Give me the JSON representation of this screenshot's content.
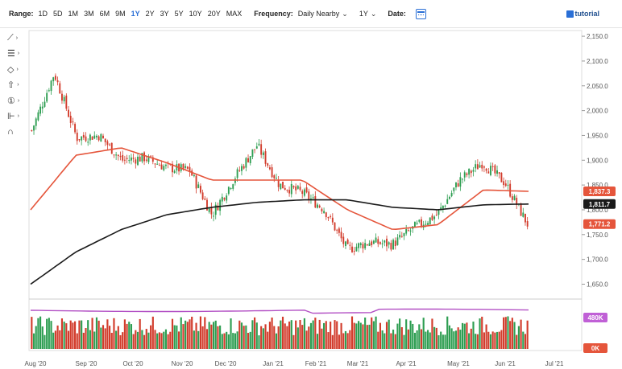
{
  "toolbar": {
    "range_label": "Range:",
    "ranges": [
      "1D",
      "5D",
      "1M",
      "3M",
      "6M",
      "9M",
      "1Y",
      "2Y",
      "3Y",
      "5Y",
      "10Y",
      "20Y",
      "MAX"
    ],
    "active_range": "1Y",
    "frequency_label": "Frequency:",
    "frequency_value": "Daily Nearby",
    "period_value": "1Y",
    "date_label": "Date:"
  },
  "brand": {
    "text": "tutorial"
  },
  "tools": [
    {
      "icon": "line-draw-icon",
      "glyph": "⟋"
    },
    {
      "icon": "fib-tool-icon",
      "glyph": "☰"
    },
    {
      "icon": "shapes-icon",
      "glyph": "◇"
    },
    {
      "icon": "arrow-shape-icon",
      "glyph": "⇧"
    },
    {
      "icon": "annotation-icon",
      "glyph": "①"
    },
    {
      "icon": "measure-icon",
      "glyph": "⊩"
    },
    {
      "icon": "magnet-icon",
      "glyph": "∩"
    }
  ],
  "colors": {
    "up": "#2e9e52",
    "down": "#d23c2c",
    "ma_fast": "#e5553b",
    "ma_slow": "#1a1a1a",
    "volume_avg": "#b24fc4",
    "badge_volume": "#c060d6",
    "badge_zero": "#e5553b"
  },
  "chart_data": {
    "type": "candlestick",
    "x_tick_labels": [
      "Aug '20",
      "Sep '20",
      "Oct '20",
      "Nov '20",
      "Dec '20",
      "Jan '21",
      "Feb '21",
      "Mar '21",
      "Apr '21",
      "May '21",
      "Jun '21",
      "Jul '21"
    ],
    "y_tick_labels": [
      "2,150.0",
      "2,100.0",
      "2,050.0",
      "2,000.0",
      "1,950.0",
      "1,900.0",
      "1,850.0",
      "1,800.0",
      "1,750.0",
      "1,700.0",
      "1,650.0"
    ],
    "ylim": [
      1620,
      2155
    ],
    "close_series": [
      {
        "month": "Aug '20",
        "close": 1960
      },
      {
        "month": "mid Aug '20",
        "close": 2075
      },
      {
        "month": "Sep '20",
        "close": 1945
      },
      {
        "month": "mid Sep '20",
        "close": 1950
      },
      {
        "month": "Oct '20",
        "close": 1900
      },
      {
        "month": "mid Oct '20",
        "close": 1905
      },
      {
        "month": "Nov '20",
        "close": 1885
      },
      {
        "month": "mid Nov '20",
        "close": 1880
      },
      {
        "month": "Dec '20",
        "close": 1790
      },
      {
        "month": "mid Dec '20",
        "close": 1865
      },
      {
        "month": "Jan '21",
        "close": 1930
      },
      {
        "month": "mid Jan '21",
        "close": 1850
      },
      {
        "month": "Feb '21",
        "close": 1835
      },
      {
        "month": "mid Feb '21",
        "close": 1800
      },
      {
        "month": "Mar '21",
        "close": 1720
      },
      {
        "month": "mid Mar '21",
        "close": 1735
      },
      {
        "month": "Apr '21",
        "close": 1730
      },
      {
        "month": "mid Apr '21",
        "close": 1765
      },
      {
        "month": "May '21",
        "close": 1790
      },
      {
        "month": "mid May '21",
        "close": 1860
      },
      {
        "month": "Jun '21",
        "close": 1895
      },
      {
        "month": "mid Jun '21",
        "close": 1855
      },
      {
        "month": "late Jun '21",
        "close": 1771.2
      }
    ],
    "ma_fast": [
      {
        "month": "Aug '20",
        "value": 1800
      },
      {
        "month": "Sep '20",
        "value": 1910
      },
      {
        "month": "Oct '20",
        "value": 1925
      },
      {
        "month": "Nov '20",
        "value": 1895
      },
      {
        "month": "Dec '20",
        "value": 1860
      },
      {
        "month": "Jan '21",
        "value": 1860
      },
      {
        "month": "Feb '21",
        "value": 1860
      },
      {
        "month": "Mar '21",
        "value": 1800
      },
      {
        "month": "Apr '21",
        "value": 1760
      },
      {
        "month": "May '21",
        "value": 1770
      },
      {
        "month": "Jun '21",
        "value": 1840
      },
      {
        "month": "late Jun '21",
        "value": 1837.3
      }
    ],
    "ma_slow": [
      {
        "month": "Aug '20",
        "value": 1650
      },
      {
        "month": "Sep '20",
        "value": 1715
      },
      {
        "month": "Oct '20",
        "value": 1760
      },
      {
        "month": "Nov '20",
        "value": 1790
      },
      {
        "month": "Dec '20",
        "value": 1805
      },
      {
        "month": "Jan '21",
        "value": 1815
      },
      {
        "month": "Feb '21",
        "value": 1820
      },
      {
        "month": "Mar '21",
        "value": 1820
      },
      {
        "month": "Apr '21",
        "value": 1805
      },
      {
        "month": "May '21",
        "value": 1800
      },
      {
        "month": "Jun '21",
        "value": 1810
      },
      {
        "month": "late Jun '21",
        "value": 1811.7
      }
    ],
    "price_badges": [
      {
        "label": "1,837.3",
        "value": 1837.3,
        "color": "#e5553b"
      },
      {
        "label": "1,811.7",
        "value": 1811.7,
        "color": "#1a1a1a"
      },
      {
        "label": "1,771.2",
        "value": 1771.2,
        "color": "#e5553b"
      }
    ],
    "volume_badges": [
      {
        "label": "480K",
        "color": "#c060d6"
      },
      {
        "label": "0K",
        "color": "#e5553b"
      }
    ]
  }
}
